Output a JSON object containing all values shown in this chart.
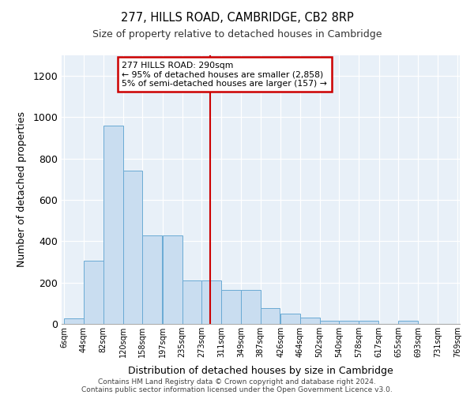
{
  "title1": "277, HILLS ROAD, CAMBRIDGE, CB2 8RP",
  "title2": "Size of property relative to detached houses in Cambridge",
  "xlabel": "Distribution of detached houses by size in Cambridge",
  "ylabel": "Number of detached properties",
  "bar_color": "#c9ddf0",
  "bar_edge_color": "#6aaad4",
  "property_size": 290,
  "vline_x": 290,
  "annotation_lines": [
    "277 HILLS ROAD: 290sqm",
    "← 95% of detached houses are smaller (2,858)",
    "5% of semi-detached houses are larger (157) →"
  ],
  "bins": [
    6,
    44,
    82,
    120,
    158,
    197,
    235,
    273,
    311,
    349,
    387,
    426,
    464,
    502,
    540,
    578,
    617,
    655,
    693,
    731,
    769
  ],
  "bar_heights": [
    25,
    305,
    960,
    740,
    430,
    430,
    210,
    210,
    165,
    165,
    75,
    50,
    30,
    15,
    15,
    15,
    0,
    15,
    0,
    0
  ],
  "footnote1": "Contains HM Land Registry data © Crown copyright and database right 2024.",
  "footnote2": "Contains public sector information licensed under the Open Government Licence v3.0.",
  "background_color": "#e8f0f8",
  "grid_color": "#ffffff",
  "vline_color": "#cc0000",
  "annotation_box_color": "#cc0000",
  "ylim": [
    0,
    1300
  ],
  "yticks": [
    0,
    200,
    400,
    600,
    800,
    1000,
    1200
  ]
}
